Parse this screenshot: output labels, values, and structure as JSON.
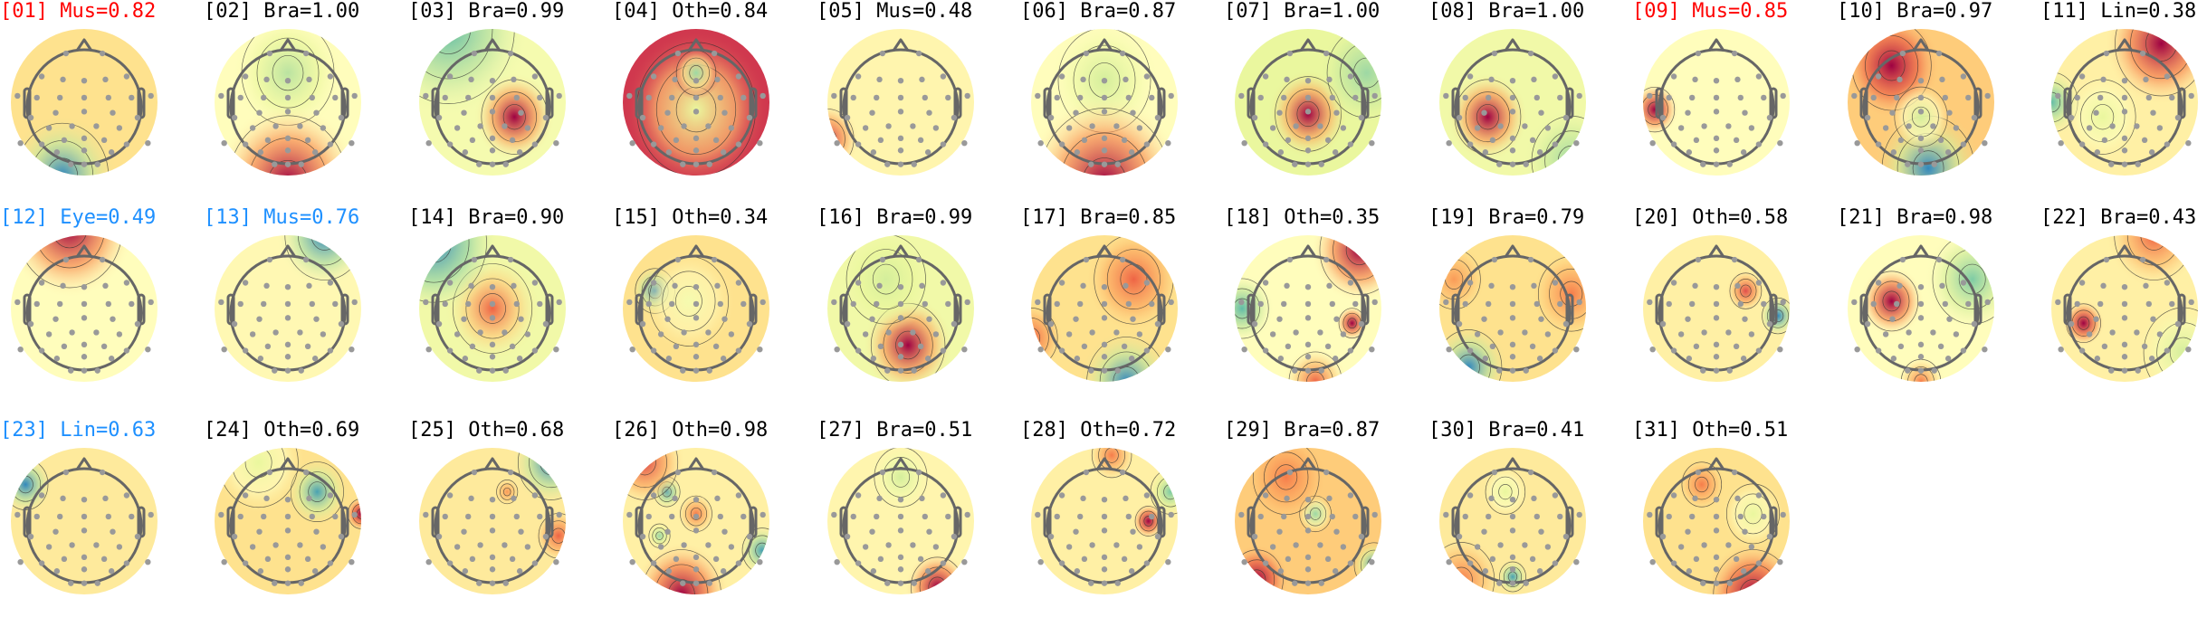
{
  "figure": {
    "title": "",
    "layout": {
      "columns": 11,
      "rows": 3,
      "col_pitch": 225.4,
      "row_tops": [
        0,
        228,
        463
      ]
    },
    "label_colors": {
      "black": "#000000",
      "red": "#ff0000",
      "blue": "#1e90ff"
    },
    "colormap": [
      "#3288bd",
      "#66c2a5",
      "#abdda4",
      "#e6f598",
      "#ffffbf",
      "#fee08b",
      "#fdae61",
      "#f46d43",
      "#d53e4f",
      "#9e0142"
    ]
  },
  "chart_data": {
    "type": "heatmap",
    "title": "ICA component scalp topographies with classifier labels",
    "xlabel": "",
    "ylabel": "",
    "colormap": "Spectral_r",
    "legend": "none",
    "components": [
      {
        "index": "01",
        "class": "Mus",
        "prob": 0.82,
        "label": "[01] Mus=0.82",
        "color": "red",
        "base": 0.55,
        "blobs": [
          [
            0.35,
            1.0,
            0.35,
            0.0
          ]
        ]
      },
      {
        "index": "02",
        "class": "Bra",
        "prob": 1.0,
        "label": "[02] Bra=1.00",
        "color": "black",
        "base": 0.45,
        "blobs": [
          [
            0.5,
            0.3,
            0.35,
            0.25
          ],
          [
            0.5,
            1.05,
            0.45,
            1.0
          ]
        ]
      },
      {
        "index": "03",
        "class": "Bra",
        "prob": 0.99,
        "label": "[03] Bra=0.99",
        "color": "black",
        "base": 0.4,
        "blobs": [
          [
            0.2,
            0.0,
            0.5,
            0.1
          ],
          [
            0.65,
            0.6,
            0.25,
            1.0
          ]
        ]
      },
      {
        "index": "04",
        "class": "Oth",
        "prob": 0.84,
        "label": "[04] Oth=0.84",
        "color": "black",
        "base": 0.9,
        "blobs": [
          [
            0.5,
            0.55,
            0.45,
            0.35
          ],
          [
            0.5,
            0.3,
            0.15,
            0.2
          ]
        ]
      },
      {
        "index": "05",
        "class": "Mus",
        "prob": 0.48,
        "label": "[05] Mus=0.48",
        "color": "black",
        "base": 0.48,
        "blobs": [
          [
            0.0,
            0.75,
            0.2,
            0.9
          ]
        ]
      },
      {
        "index": "06",
        "class": "Bra",
        "prob": 0.87,
        "label": "[06] Bra=0.87",
        "color": "black",
        "base": 0.45,
        "blobs": [
          [
            0.5,
            0.35,
            0.35,
            0.3
          ],
          [
            0.5,
            1.05,
            0.5,
            1.0
          ]
        ]
      },
      {
        "index": "07",
        "class": "Bra",
        "prob": 1.0,
        "label": "[07] Bra=1.00",
        "color": "black",
        "base": 0.35,
        "blobs": [
          [
            0.5,
            0.58,
            0.25,
            1.0
          ],
          [
            0.9,
            0.3,
            0.3,
            0.2
          ]
        ]
      },
      {
        "index": "08",
        "class": "Bra",
        "prob": 1.0,
        "label": "[08] Bra=1.00",
        "color": "black",
        "base": 0.38,
        "blobs": [
          [
            0.33,
            0.6,
            0.25,
            1.0
          ],
          [
            0.9,
            0.9,
            0.3,
            0.2
          ]
        ]
      },
      {
        "index": "09",
        "class": "Mus",
        "prob": 0.85,
        "label": "[09] Mus=0.85",
        "color": "red",
        "base": 0.45,
        "blobs": [
          [
            0.08,
            0.55,
            0.15,
            1.0
          ]
        ]
      },
      {
        "index": "10",
        "class": "Bra",
        "prob": 0.97,
        "label": "[10] Bra=0.97",
        "color": "black",
        "base": 0.6,
        "blobs": [
          [
            0.3,
            0.25,
            0.3,
            1.0
          ],
          [
            0.55,
            0.95,
            0.35,
            0.0
          ],
          [
            0.5,
            0.6,
            0.2,
            0.3
          ]
        ]
      },
      {
        "index": "11",
        "class": "Lin",
        "prob": 0.38,
        "label": "[11] Lin=0.38",
        "color": "black",
        "base": 0.5,
        "blobs": [
          [
            0.75,
            0.1,
            0.35,
            1.0
          ],
          [
            0.0,
            0.5,
            0.2,
            0.1
          ],
          [
            0.35,
            0.6,
            0.25,
            0.35
          ]
        ]
      },
      {
        "index": "12",
        "class": "Eye",
        "prob": 0.49,
        "label": "[12] Eye=0.49",
        "color": "blue",
        "base": 0.45,
        "blobs": [
          [
            0.4,
            -0.05,
            0.4,
            1.0
          ]
        ]
      },
      {
        "index": "13",
        "class": "Mus",
        "prob": 0.76,
        "label": "[13] Mus=0.76",
        "color": "blue",
        "base": 0.47,
        "blobs": [
          [
            0.75,
            0.0,
            0.3,
            0.0
          ]
        ]
      },
      {
        "index": "14",
        "class": "Bra",
        "prob": 0.9,
        "label": "[14] Bra=0.90",
        "color": "black",
        "base": 0.38,
        "blobs": [
          [
            0.5,
            0.5,
            0.3,
            0.8
          ],
          [
            0.1,
            0.05,
            0.4,
            0.0
          ]
        ]
      },
      {
        "index": "15",
        "class": "Oth",
        "prob": 0.34,
        "label": "[15] Oth=0.34",
        "color": "black",
        "base": 0.55,
        "blobs": [
          [
            0.22,
            0.38,
            0.15,
            0.0
          ],
          [
            0.45,
            0.45,
            0.3,
            0.4
          ]
        ]
      },
      {
        "index": "16",
        "class": "Bra",
        "prob": 0.99,
        "label": "[16] Bra=0.99",
        "color": "black",
        "base": 0.38,
        "blobs": [
          [
            0.55,
            0.75,
            0.28,
            1.0
          ],
          [
            0.4,
            0.3,
            0.3,
            0.3
          ]
        ]
      },
      {
        "index": "17",
        "class": "Bra",
        "prob": 0.85,
        "label": "[17] Bra=0.85",
        "color": "black",
        "base": 0.55,
        "blobs": [
          [
            0.7,
            0.3,
            0.3,
            0.8
          ],
          [
            0.65,
            1.0,
            0.3,
            0.0
          ],
          [
            0.0,
            0.7,
            0.2,
            0.8
          ]
        ]
      },
      {
        "index": "18",
        "class": "Oth",
        "prob": 0.35,
        "label": "[18] Oth=0.35",
        "color": "black",
        "base": 0.45,
        "blobs": [
          [
            0.85,
            0.1,
            0.3,
            1.0
          ],
          [
            0.8,
            0.6,
            0.1,
            1.0
          ],
          [
            0.05,
            0.5,
            0.2,
            0.1
          ],
          [
            0.55,
            1.0,
            0.2,
            0.8
          ]
        ]
      },
      {
        "index": "19",
        "class": "Bra",
        "prob": 0.79,
        "label": "[19] Bra=0.79",
        "color": "black",
        "base": 0.55,
        "blobs": [
          [
            0.2,
            0.9,
            0.25,
            0.0
          ],
          [
            0.9,
            0.4,
            0.25,
            0.75
          ],
          [
            0.1,
            0.3,
            0.2,
            0.7
          ]
        ]
      },
      {
        "index": "20",
        "class": "Oth",
        "prob": 0.58,
        "label": "[20] Oth=0.58",
        "color": "black",
        "base": 0.5,
        "blobs": [
          [
            0.7,
            0.38,
            0.12,
            0.85
          ],
          [
            0.92,
            0.55,
            0.12,
            0.0
          ]
        ]
      },
      {
        "index": "21",
        "class": "Bra",
        "prob": 0.98,
        "label": "[21] Bra=0.98",
        "color": "black",
        "base": 0.45,
        "blobs": [
          [
            0.3,
            0.45,
            0.2,
            1.0
          ],
          [
            0.85,
            0.3,
            0.3,
            0.15
          ],
          [
            0.5,
            1.0,
            0.15,
            0.75
          ]
        ]
      },
      {
        "index": "22",
        "class": "Bra",
        "prob": 0.43,
        "label": "[22] Bra=0.43",
        "color": "black",
        "base": 0.5,
        "blobs": [
          [
            0.22,
            0.6,
            0.13,
            1.0
          ],
          [
            0.7,
            0.0,
            0.3,
            0.8
          ],
          [
            0.9,
            0.8,
            0.3,
            0.3
          ]
        ]
      },
      {
        "index": "23",
        "class": "Lin",
        "prob": 0.63,
        "label": "[23] Lin=0.63",
        "color": "blue",
        "base": 0.52,
        "blobs": [
          [
            0.1,
            0.25,
            0.17,
            0.0
          ]
        ]
      },
      {
        "index": "24",
        "class": "Oth",
        "prob": 0.69,
        "label": "[24] Oth=0.69",
        "color": "black",
        "base": 0.55,
        "blobs": [
          [
            0.7,
            0.3,
            0.2,
            0.05
          ],
          [
            1.0,
            0.45,
            0.1,
            1.0
          ],
          [
            0.3,
            0.1,
            0.3,
            0.35
          ]
        ]
      },
      {
        "index": "25",
        "class": "Oth",
        "prob": 0.68,
        "label": "[25] Oth=0.68",
        "color": "black",
        "base": 0.52,
        "blobs": [
          [
            0.9,
            0.1,
            0.25,
            0.0
          ],
          [
            0.95,
            0.6,
            0.15,
            0.8
          ],
          [
            0.6,
            0.3,
            0.08,
            0.7
          ]
        ]
      },
      {
        "index": "26",
        "class": "Oth",
        "prob": 0.98,
        "label": "[26] Oth=0.98",
        "color": "black",
        "base": 0.5,
        "blobs": [
          [
            0.3,
            0.3,
            0.1,
            0.05
          ],
          [
            0.25,
            0.6,
            0.08,
            0.2
          ],
          [
            0.4,
            1.0,
            0.3,
            1.0
          ],
          [
            0.15,
            0.1,
            0.25,
            0.85
          ],
          [
            0.95,
            0.7,
            0.15,
            0.05
          ],
          [
            0.5,
            0.45,
            0.12,
            0.75
          ]
        ]
      },
      {
        "index": "27",
        "class": "Bra",
        "prob": 0.51,
        "label": "[27] Bra=0.51",
        "color": "black",
        "base": 0.48,
        "blobs": [
          [
            0.75,
            0.95,
            0.2,
            1.0
          ],
          [
            0.5,
            0.2,
            0.2,
            0.3
          ]
        ]
      },
      {
        "index": "28",
        "class": "Oth",
        "prob": 0.72,
        "label": "[28] Oth=0.72",
        "color": "black",
        "base": 0.5,
        "blobs": [
          [
            0.8,
            0.5,
            0.1,
            1.0
          ],
          [
            0.95,
            0.3,
            0.15,
            0.15
          ],
          [
            0.55,
            0.05,
            0.15,
            0.75
          ]
        ]
      },
      {
        "index": "29",
        "class": "Bra",
        "prob": 0.87,
        "label": "[29] Bra=0.87",
        "color": "black",
        "base": 0.6,
        "blobs": [
          [
            0.15,
            0.9,
            0.2,
            1.0
          ],
          [
            0.55,
            0.45,
            0.12,
            0.2
          ],
          [
            0.95,
            0.8,
            0.15,
            0.05
          ],
          [
            0.35,
            0.2,
            0.25,
            0.75
          ]
        ]
      },
      {
        "index": "30",
        "class": "Bra",
        "prob": 0.41,
        "label": "[30] Bra=0.41",
        "color": "black",
        "base": 0.52,
        "blobs": [
          [
            0.5,
            0.88,
            0.1,
            0.05
          ],
          [
            0.45,
            0.3,
            0.15,
            0.35
          ],
          [
            0.15,
            0.9,
            0.25,
            0.75
          ]
        ]
      },
      {
        "index": "31",
        "class": "Oth",
        "prob": 0.51,
        "label": "[31] Oth=0.51",
        "color": "black",
        "base": 0.55,
        "blobs": [
          [
            0.75,
            1.0,
            0.3,
            1.0
          ],
          [
            0.75,
            0.45,
            0.2,
            0.35
          ],
          [
            0.4,
            0.25,
            0.15,
            0.75
          ]
        ]
      }
    ]
  }
}
